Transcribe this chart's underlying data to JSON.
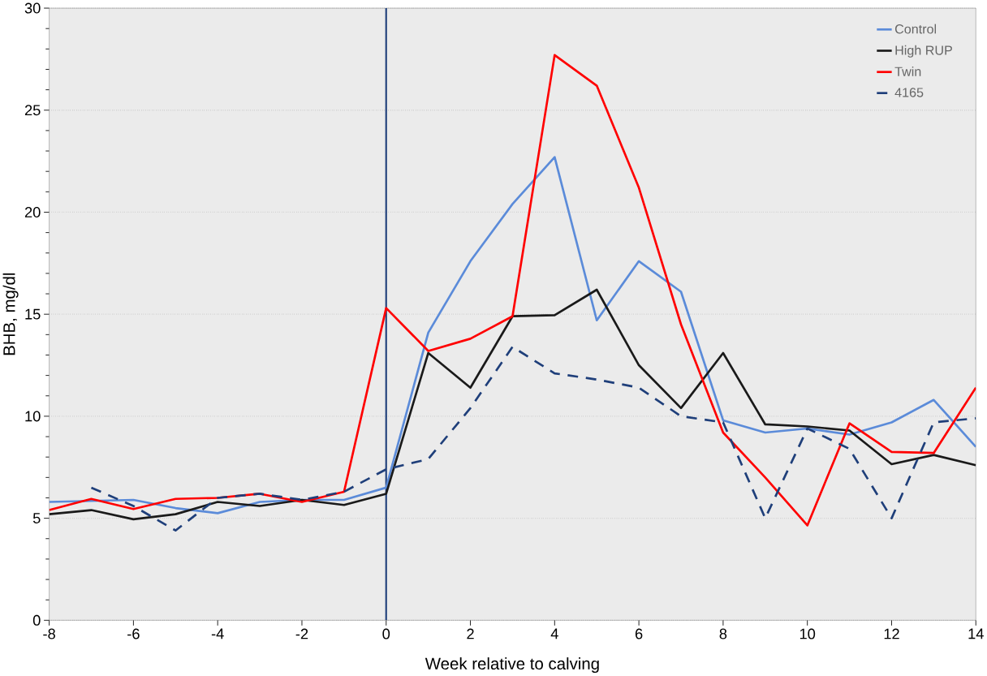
{
  "chart_data": {
    "type": "line",
    "xlabel": "Week relative to calving",
    "ylabel": "BHB, mg/dl",
    "x": [
      -8,
      -7,
      -6,
      -5,
      -4,
      -3,
      -2,
      -1,
      0,
      1,
      2,
      3,
      4,
      5,
      6,
      7,
      8,
      9,
      10,
      11,
      12,
      13,
      14
    ],
    "series": [
      {
        "name": "Control",
        "color": "#5b8bd9",
        "values": [
          5.8,
          5.85,
          5.9,
          5.5,
          5.25,
          5.8,
          5.9,
          5.9,
          6.5,
          14.1,
          17.6,
          20.4,
          22.7,
          14.7,
          17.6,
          16.1,
          9.8,
          9.2,
          9.4,
          9.1,
          9.7,
          10.8,
          8.5
        ]
      },
      {
        "name": "High RUP",
        "color": "#1a1a1a",
        "values": [
          5.2,
          5.4,
          4.95,
          5.2,
          5.8,
          5.6,
          5.9,
          5.65,
          6.2,
          13.1,
          11.4,
          14.9,
          14.95,
          16.2,
          12.5,
          10.4,
          13.1,
          9.6,
          9.5,
          9.3,
          7.65,
          8.1,
          7.6
        ]
      },
      {
        "name": "Twin",
        "color": "#ff0000",
        "values": [
          5.4,
          5.95,
          5.45,
          5.95,
          6.0,
          6.2,
          5.8,
          6.3,
          15.3,
          13.2,
          13.8,
          14.9,
          27.7,
          26.2,
          21.2,
          14.5,
          9.2,
          7.0,
          4.65,
          9.65,
          8.25,
          8.2,
          11.4
        ]
      },
      {
        "name": "4165",
        "color": "#1f3f7a",
        "line_style": "dashed",
        "values": [
          null,
          6.5,
          5.6,
          4.4,
          6.0,
          6.2,
          5.9,
          6.3,
          7.4,
          7.9,
          10.4,
          13.4,
          12.1,
          11.8,
          11.4,
          10.0,
          9.7,
          5.0,
          9.4,
          8.4,
          5.0,
          9.7,
          9.9
        ]
      }
    ],
    "xlim": [
      -8,
      14
    ],
    "xticks": [
      -8,
      -6,
      -4,
      -2,
      0,
      2,
      4,
      6,
      8,
      10,
      12,
      14
    ],
    "ylim": [
      0,
      30
    ],
    "yticks": [
      0,
      5,
      10,
      15,
      20,
      25,
      30
    ],
    "grid": "y",
    "legend": "top right",
    "line_style": "solid",
    "marker": "none",
    "ref_lines": [
      {
        "axis": "x",
        "value": 0,
        "color": "#1f3f7a"
      }
    ]
  }
}
